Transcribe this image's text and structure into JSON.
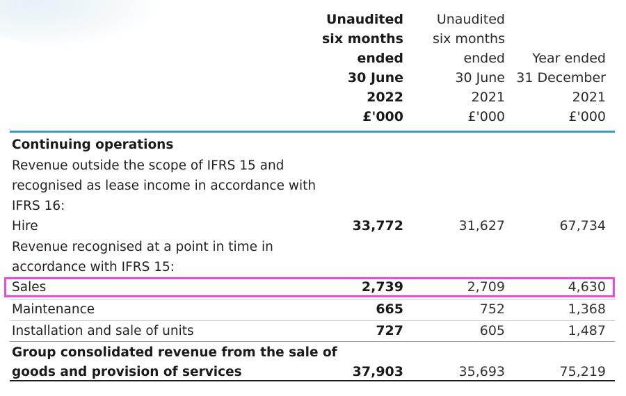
{
  "headers": {
    "col1": [
      "Unaudited",
      "six months",
      "ended",
      "30 June",
      "2022",
      "£'000"
    ],
    "col2": [
      "Unaudited",
      "six months",
      "ended",
      "30 June",
      "2021",
      "£'000"
    ],
    "col3": [
      "Year ended",
      "31 December",
      "2021",
      "£'000"
    ]
  },
  "rows": {
    "continuing": "Continuing operations",
    "revenue_outside": [
      "Revenue outside the scope of IFRS 15 and",
      "recognised as lease income in accordance with",
      "IFRS 16:"
    ],
    "hire": {
      "label": "Hire",
      "v1": "33,772",
      "v2": "31,627",
      "v3": "67,734"
    },
    "point_in_time": [
      "Revenue recognised at a point in time in",
      "accordance with IFRS 15:"
    ],
    "sales": {
      "label": "Sales",
      "v1": "2,739",
      "v2": "2,709",
      "v3": "4,630"
    },
    "maintenance": {
      "label": "Maintenance",
      "v1": "665",
      "v2": "752",
      "v3": "1,368"
    },
    "installation": {
      "label": "Installation and sale of units",
      "v1": "727",
      "v2": "605",
      "v3": "1,487"
    },
    "total": {
      "label": [
        "Group consolidated revenue from the sale of",
        "goods and provision of services"
      ],
      "v1": "37,903",
      "v2": "35,693",
      "v3": "75,219"
    }
  },
  "colors": {
    "accent_rule": "#2aa3c7",
    "highlight": "#e84cdd"
  }
}
